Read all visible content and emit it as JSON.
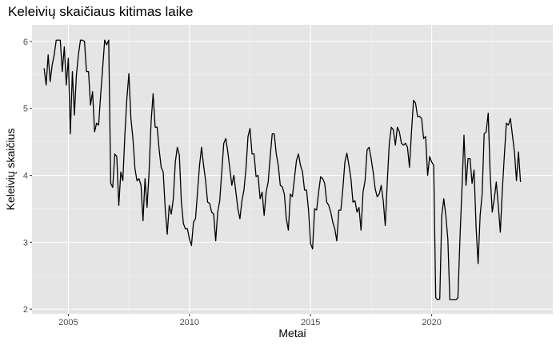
{
  "chart_data": {
    "type": "line",
    "title": "Keleivių skaičiaus kitimas laike",
    "xlabel": "Metai",
    "ylabel": "Keleivių skaičius",
    "xlim": [
      2003.5,
      2025.0
    ],
    "ylim": [
      1.93,
      6.25
    ],
    "x_ticks": [
      2005,
      2010,
      2015,
      2020
    ],
    "x_tick_labels": [
      "2005",
      "2010",
      "2015",
      "2020"
    ],
    "y_ticks": [
      2,
      3,
      4,
      5,
      6
    ],
    "y_tick_labels": [
      "2",
      "3",
      "4",
      "5",
      "6"
    ],
    "grid": true,
    "legend": "none",
    "colors": {
      "panel": "#e5e5e5",
      "grid_major": "#ffffff",
      "grid_minor": "#f2f2f2",
      "line": "#000000"
    },
    "series": [
      {
        "x_start": 2004.0,
        "x_step_months": 1,
        "values": [
          5.6,
          5.35,
          5.8,
          5.4,
          5.65,
          5.8,
          6.02,
          6.02,
          6.02,
          5.55,
          5.92,
          5.35,
          5.75,
          4.62,
          5.55,
          4.9,
          5.5,
          5.8,
          6.02,
          6.02,
          6.0,
          5.55,
          5.55,
          5.05,
          5.25,
          4.65,
          4.78,
          4.75,
          5.2,
          5.6,
          6.02,
          5.95,
          6.02,
          3.88,
          3.82,
          4.32,
          4.28,
          3.55,
          4.05,
          3.92,
          4.6,
          5.15,
          5.52,
          4.85,
          4.55,
          4.1,
          3.92,
          3.95,
          3.85,
          3.32,
          3.95,
          3.52,
          4.05,
          4.8,
          5.22,
          4.72,
          4.72,
          4.38,
          4.12,
          4.05,
          3.5,
          3.12,
          3.55,
          3.42,
          3.65,
          4.2,
          4.42,
          4.3,
          3.6,
          3.28,
          3.2,
          3.2,
          3.05,
          2.95,
          3.3,
          3.35,
          3.75,
          4.15,
          4.42,
          4.15,
          3.92,
          3.6,
          3.58,
          3.45,
          3.42,
          3.02,
          3.45,
          3.62,
          4.05,
          4.48,
          4.55,
          4.35,
          4.1,
          3.85,
          4.0,
          3.75,
          3.5,
          3.35,
          3.62,
          3.78,
          4.1,
          4.58,
          4.7,
          4.32,
          4.32,
          3.98,
          4.0,
          3.65,
          3.75,
          3.4,
          3.75,
          3.9,
          4.28,
          4.62,
          4.62,
          4.32,
          4.15,
          3.85,
          3.83,
          3.72,
          3.35,
          3.18,
          3.72,
          3.68,
          3.95,
          4.22,
          4.32,
          4.15,
          4.05,
          3.78,
          3.78,
          3.48,
          2.98,
          2.9,
          3.5,
          3.48,
          3.75,
          3.98,
          3.95,
          3.88,
          3.6,
          3.55,
          3.45,
          3.3,
          3.2,
          3.02,
          3.48,
          3.48,
          3.8,
          4.2,
          4.33,
          4.15,
          3.95,
          3.6,
          3.62,
          3.45,
          3.52,
          3.18,
          3.75,
          3.92,
          4.38,
          4.42,
          4.25,
          4.05,
          3.8,
          3.68,
          3.72,
          3.85,
          3.62,
          3.25,
          3.9,
          4.48,
          4.72,
          4.68,
          4.45,
          4.72,
          4.65,
          4.48,
          4.45,
          4.48,
          4.42,
          4.12,
          4.65,
          5.12,
          5.08,
          4.88,
          4.88,
          4.85,
          4.55,
          4.58,
          4.0,
          4.28,
          4.2,
          4.15,
          2.17,
          2.14,
          2.15,
          3.4,
          3.65,
          3.4,
          3.05,
          2.14,
          2.14,
          2.14,
          2.14,
          2.17,
          3.05,
          3.8,
          4.6,
          3.85,
          4.25,
          4.25,
          3.88,
          4.08,
          3.22,
          2.68,
          3.4,
          3.72,
          4.62,
          4.65,
          4.93,
          4.0,
          3.45,
          3.65,
          3.9,
          3.55,
          3.15,
          3.78,
          4.3,
          4.78,
          4.75,
          4.85,
          4.6,
          4.35,
          3.92,
          4.35,
          3.9
        ]
      }
    ]
  }
}
